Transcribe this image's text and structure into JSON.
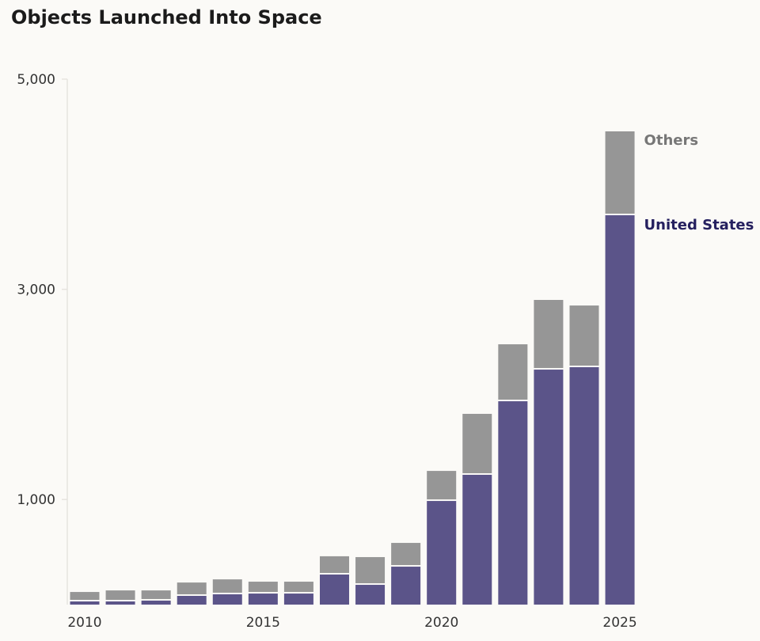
{
  "chart_data": {
    "type": "bar",
    "stacked": true,
    "title": "Objects Launched Into Space",
    "categories": [
      2010,
      2011,
      2012,
      2013,
      2014,
      2015,
      2016,
      2017,
      2018,
      2019,
      2020,
      2021,
      2022,
      2023,
      2024,
      2025
    ],
    "x_tick_labels": [
      "2010",
      "2015",
      "2020",
      "2025"
    ],
    "y_tick_labels": [
      "1,000",
      "3,000",
      "5,000"
    ],
    "y_ticks": [
      1000,
      3000,
      5000
    ],
    "ylim": [
      0,
      5000
    ],
    "grid": false,
    "legend_placement": "direct labels at right of last bar",
    "series": [
      {
        "name": "United States",
        "color": "#5b5489",
        "values": [
          30,
          30,
          38,
          83,
          98,
          105,
          105,
          286,
          188,
          361,
          986,
          1235,
          1935,
          2236,
          2259,
          3705
        ]
      },
      {
        "name": "Others",
        "color": "#969696",
        "values": [
          90,
          105,
          97,
          127,
          142,
          113,
          113,
          174,
          264,
          226,
          286,
          580,
          542,
          663,
          587,
          798
        ]
      }
    ]
  }
}
